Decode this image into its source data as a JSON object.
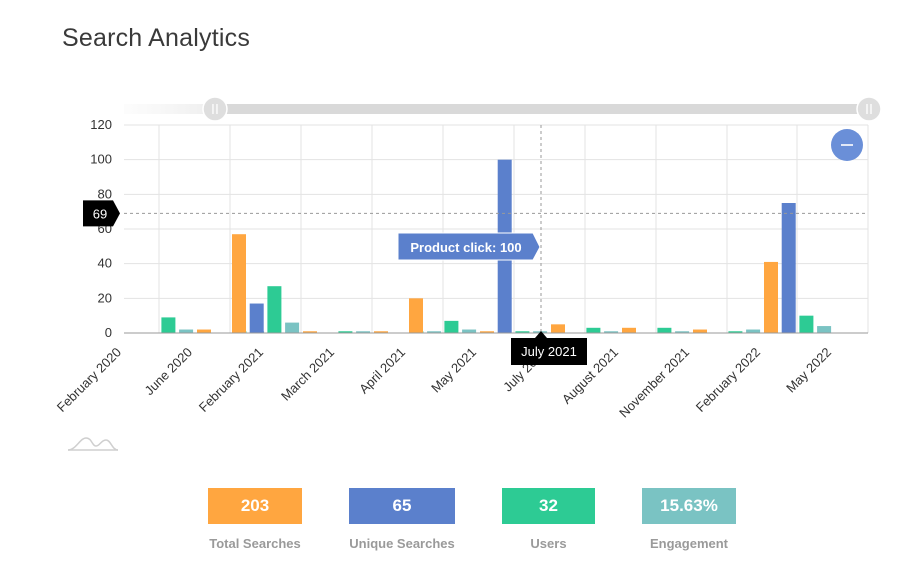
{
  "page": {
    "title": "Search Analytics"
  },
  "colors": {
    "orange": "#ffa640",
    "blue": "#5b80cc",
    "green": "#2dcb94",
    "teal": "#7ac3c3",
    "tooltip_bg": "#5b80cc",
    "crosshair_label_bg": "#000000"
  },
  "chart_data": {
    "type": "bar",
    "y_ticks": [
      0,
      20,
      40,
      60,
      80,
      100,
      120
    ],
    "ylim": [
      0,
      120
    ],
    "grid": true,
    "x_labels": [
      "February 2020",
      "June 2020",
      "February 2021",
      "March 2021",
      "April 2021",
      "May 2021",
      "July 2021",
      "August 2021",
      "November 2021",
      "February 2022",
      "May 2022"
    ],
    "bars_per_group": [
      "orange",
      "blue",
      "green",
      "teal"
    ],
    "groups": [
      {
        "values": [
          0,
          0,
          9,
          2
        ]
      },
      {
        "values": [
          2,
          0,
          1,
          1
        ]
      },
      {
        "values": [
          57,
          17,
          27,
          6
        ]
      },
      {
        "values": [
          1,
          0,
          1,
          1
        ]
      },
      {
        "values": [
          1,
          0,
          1,
          1
        ]
      },
      {
        "values": [
          20,
          0,
          7,
          2
        ]
      },
      {
        "values": [
          1,
          100,
          1,
          1
        ]
      },
      {
        "values": [
          5,
          0,
          3,
          1
        ]
      },
      {
        "values": [
          3,
          0,
          3,
          1
        ]
      },
      {
        "values": [
          2,
          0,
          1,
          2
        ]
      },
      {
        "values": [
          41,
          75,
          10,
          4
        ]
      }
    ],
    "crosshair": {
      "y_value": 69,
      "y_label": "69",
      "x_label": "July 2021"
    },
    "tooltip": {
      "text": "Product click: 100"
    }
  },
  "stats": [
    {
      "value": "203",
      "label": "Total Searches",
      "color": "#ffa640"
    },
    {
      "value": "65",
      "label": "Unique Searches",
      "color": "#5b80cc"
    },
    {
      "value": "32",
      "label": "Users",
      "color": "#2dcb94"
    },
    {
      "value": "15.63%",
      "label": "Engagement",
      "color": "#7ac3c3"
    }
  ],
  "controls": {
    "zoom_out_icon": "minus-icon",
    "range_slider": {
      "start": 0.13,
      "end": 1.0
    }
  }
}
